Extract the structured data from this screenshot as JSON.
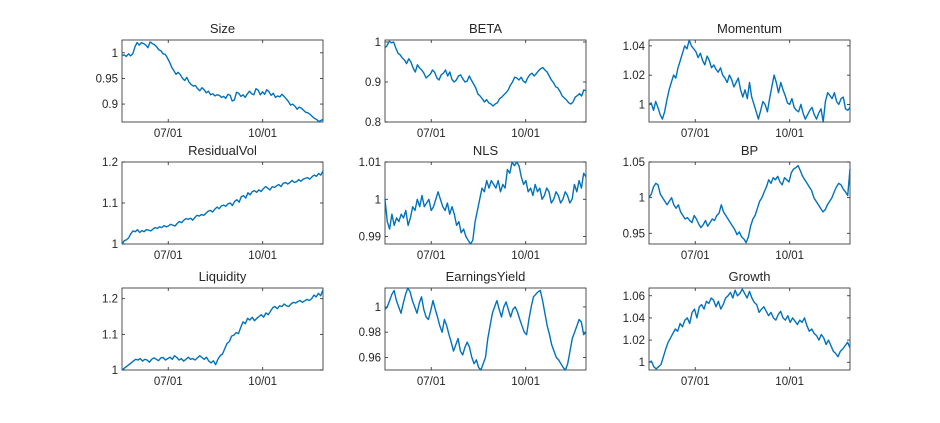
{
  "chart_data": [
    {
      "type": "line",
      "title": "Size",
      "xlabel": "",
      "ylabel": "",
      "xticks": [
        "07/01",
        "10/01"
      ],
      "yticks": [
        "0.9",
        "0.95",
        "1"
      ],
      "ylim": [
        0.865,
        1.025
      ],
      "grid": false,
      "color": "#0072BD",
      "series": [
        {
          "values": [
            0.995,
            0.996,
            0.993,
            0.998,
            0.994,
            0.998,
            1.012,
            1.02,
            1.015,
            1.02,
            1.018,
            1.015,
            1.01,
            1.021,
            1.018,
            1.016,
            1.012,
            1.006,
            1.004,
            0.998,
            0.997,
            0.99,
            0.982,
            0.972,
            0.965,
            0.958,
            0.962,
            0.957,
            0.95,
            0.946,
            0.952,
            0.943,
            0.938,
            0.935,
            0.936,
            0.93,
            0.926,
            0.932,
            0.928,
            0.922,
            0.925,
            0.918,
            0.92,
            0.916,
            0.918,
            0.917,
            0.913,
            0.915,
            0.911,
            0.919,
            0.917,
            0.906,
            0.908,
            0.923,
            0.921,
            0.915,
            0.918,
            0.913,
            0.92,
            0.925,
            0.92,
            0.918,
            0.93,
            0.927,
            0.918,
            0.924,
            0.919,
            0.928,
            0.924,
            0.917,
            0.921,
            0.913,
            0.916,
            0.914,
            0.919,
            0.915,
            0.91,
            0.905,
            0.898,
            0.9,
            0.896,
            0.89,
            0.894,
            0.892,
            0.888,
            0.884,
            0.883,
            0.88,
            0.876,
            0.872,
            0.87,
            0.866,
            0.868,
            0.87
          ]
        }
      ]
    },
    {
      "type": "line",
      "title": "BETA",
      "xlabel": "",
      "ylabel": "",
      "xticks": [
        "07/01",
        "10/01"
      ],
      "yticks": [
        "0.8",
        "0.9",
        "1"
      ],
      "ylim": [
        0.8,
        1.005
      ],
      "grid": false,
      "color": "#0072BD",
      "series": [
        {
          "values": [
            0.985,
            0.992,
            1.002,
            0.998,
            1.0,
            0.985,
            0.972,
            0.968,
            0.96,
            0.955,
            0.946,
            0.958,
            0.95,
            0.935,
            0.925,
            0.943,
            0.935,
            0.93,
            0.922,
            0.91,
            0.915,
            0.92,
            0.93,
            0.924,
            0.91,
            0.905,
            0.918,
            0.922,
            0.93,
            0.915,
            0.925,
            0.906,
            0.9,
            0.905,
            0.915,
            0.918,
            0.908,
            0.9,
            0.902,
            0.915,
            0.904,
            0.895,
            0.885,
            0.87,
            0.865,
            0.858,
            0.85,
            0.856,
            0.848,
            0.845,
            0.84,
            0.845,
            0.848,
            0.858,
            0.862,
            0.868,
            0.873,
            0.88,
            0.892,
            0.9,
            0.912,
            0.91,
            0.905,
            0.912,
            0.902,
            0.898,
            0.91,
            0.918,
            0.922,
            0.915,
            0.921,
            0.928,
            0.933,
            0.936,
            0.93,
            0.925,
            0.915,
            0.905,
            0.898,
            0.888,
            0.885,
            0.876,
            0.865,
            0.86,
            0.855,
            0.848,
            0.845,
            0.85,
            0.862,
            0.866,
            0.871,
            0.865,
            0.88,
            0.878
          ]
        }
      ]
    },
    {
      "type": "line",
      "title": "Momentum",
      "xlabel": "",
      "ylabel": "",
      "xticks": [
        "07/01",
        "10/01"
      ],
      "yticks": [
        "1",
        "1.02",
        "1.04"
      ],
      "ylim": [
        0.988,
        1.044
      ],
      "grid": false,
      "color": "#0072BD",
      "series": [
        {
          "values": [
            1.0,
            1.001,
            0.996,
            1.002,
            0.998,
            0.993,
            0.99,
            0.995,
            1.003,
            1.01,
            1.015,
            1.02,
            1.018,
            1.025,
            1.03,
            1.035,
            1.04,
            1.038,
            1.044,
            1.04,
            1.038,
            1.036,
            1.032,
            1.035,
            1.03,
            1.027,
            1.033,
            1.03,
            1.025,
            1.027,
            1.024,
            1.022,
            1.025,
            1.02,
            1.018,
            1.015,
            1.02,
            1.017,
            1.012,
            1.015,
            1.018,
            1.01,
            1.005,
            1.01,
            1.004,
            1.015,
            1.005,
            1.0,
            0.995,
            0.99,
            0.996,
            1.002,
            1.0,
            0.995,
            1.004,
            1.012,
            1.02,
            1.015,
            1.008,
            1.015,
            1.01,
            1.006,
            1.001,
            1.0,
            1.004,
            0.998,
            0.996,
            0.995,
            1.0,
            0.994,
            0.99,
            0.993,
            0.996,
            0.998,
            0.993,
            0.99,
            0.994,
            0.997,
            0.988,
            1.002,
            1.008,
            1.006,
            1.004,
            1.008,
            1.002,
            1.0,
            1.004,
            1.005,
            0.997,
            0.996,
            0.998
          ]
        }
      ]
    },
    {
      "type": "line",
      "title": "ResidualVol",
      "xlabel": "",
      "ylabel": "",
      "xticks": [
        "07/01",
        "10/01"
      ],
      "yticks": [
        "1",
        "1.1",
        "1.2"
      ],
      "ylim": [
        1.0,
        1.2
      ],
      "grid": false,
      "color": "#0072BD",
      "series": [
        {
          "values": [
            1.0,
            1.008,
            1.01,
            1.015,
            1.025,
            1.032,
            1.03,
            1.035,
            1.028,
            1.033,
            1.03,
            1.035,
            1.034,
            1.032,
            1.036,
            1.04,
            1.038,
            1.042,
            1.04,
            1.045,
            1.042,
            1.044,
            1.048,
            1.046,
            1.044,
            1.05,
            1.055,
            1.052,
            1.058,
            1.062,
            1.06,
            1.063,
            1.058,
            1.065,
            1.07,
            1.068,
            1.072,
            1.07,
            1.075,
            1.08,
            1.082,
            1.078,
            1.085,
            1.09,
            1.086,
            1.093,
            1.095,
            1.092,
            1.098,
            1.1,
            1.094,
            1.104,
            1.108,
            1.102,
            1.115,
            1.118,
            1.112,
            1.125,
            1.12,
            1.128,
            1.13,
            1.126,
            1.132,
            1.128,
            1.135,
            1.14,
            1.136,
            1.132,
            1.14,
            1.138,
            1.142,
            1.145,
            1.14,
            1.148,
            1.15,
            1.146,
            1.15,
            1.155,
            1.15,
            1.152,
            1.157,
            1.153,
            1.158,
            1.16,
            1.162,
            1.158,
            1.164,
            1.168,
            1.165,
            1.172,
            1.168,
            1.178
          ]
        }
      ]
    },
    {
      "type": "line",
      "title": "NLS",
      "xlabel": "",
      "ylabel": "",
      "xticks": [
        "07/01",
        "10/01"
      ],
      "yticks": [
        "0.99",
        "1",
        "1.01"
      ],
      "ylim": [
        0.988,
        1.01
      ],
      "grid": false,
      "color": "#0072BD",
      "series": [
        {
          "values": [
            1.0,
            0.994,
            0.992,
            0.996,
            0.993,
            0.995,
            0.994,
            0.996,
            0.995,
            0.997,
            0.993,
            0.995,
            0.998,
            0.997,
            1.0,
            0.998,
            1.001,
            0.998,
            0.999,
            1.0,
            0.997,
            0.998,
            1.0,
            1.002,
            1.0,
            0.998,
            0.997,
            0.999,
            0.996,
            0.998,
            0.996,
            0.993,
            0.994,
            0.991,
            0.992,
            0.99,
            0.989,
            0.988,
            0.989,
            0.994,
            0.997,
            1.0,
            1.003,
            1.002,
            1.005,
            1.003,
            1.005,
            1.004,
            1.003,
            1.005,
            1.002,
            1.004,
            1.003,
            1.008,
            1.007,
            1.01,
            1.009,
            1.01,
            1.009,
            1.006,
            1.004,
            1.005,
            1.002,
            1.003,
            1.001,
            1.004,
            1.002,
            1.003,
            1.0,
            1.001,
            1.003,
            1.002,
            0.999,
            1.0,
            1.002,
            1.001,
            0.999,
            1.0,
            1.002,
            1.001,
            0.999,
            1.0,
            1.004,
            1.002,
            1.005,
            1.003,
            1.007,
            1.006
          ]
        }
      ]
    },
    {
      "type": "line",
      "title": "BP",
      "xlabel": "",
      "ylabel": "",
      "xticks": [
        "07/01",
        "10/01"
      ],
      "yticks": [
        "0.95",
        "1",
        "1.05"
      ],
      "ylim": [
        0.935,
        1.05
      ],
      "grid": false,
      "color": "#0072BD",
      "series": [
        {
          "values": [
            1.0,
            1.005,
            1.015,
            1.02,
            1.018,
            1.005,
            1.0,
            0.995,
            0.99,
            0.995,
            1.0,
            0.99,
            0.985,
            0.99,
            0.98,
            0.975,
            0.97,
            0.972,
            0.968,
            0.965,
            0.975,
            0.97,
            0.963,
            0.958,
            0.962,
            0.968,
            0.96,
            0.965,
            0.97,
            0.968,
            0.975,
            0.978,
            0.99,
            0.98,
            0.975,
            0.97,
            0.965,
            0.96,
            0.955,
            0.948,
            0.952,
            0.945,
            0.942,
            0.937,
            0.945,
            0.96,
            0.97,
            0.975,
            0.985,
            0.995,
            1.0,
            1.008,
            1.015,
            1.025,
            1.02,
            1.028,
            1.025,
            1.03,
            1.022,
            1.018,
            1.028,
            1.025,
            1.022,
            1.035,
            1.04,
            1.042,
            1.045,
            1.038,
            1.03,
            1.025,
            1.02,
            1.015,
            1.01,
            1.0,
            0.995,
            0.99,
            0.985,
            0.98,
            0.983,
            0.99,
            0.995,
            1.0,
            1.008,
            1.015,
            1.02,
            1.018,
            1.012,
            1.008,
            1.003,
            1.04
          ]
        }
      ]
    },
    {
      "type": "line",
      "title": "Liquidity",
      "xlabel": "",
      "ylabel": "",
      "xticks": [
        "07/01",
        "10/01"
      ],
      "yticks": [
        "1",
        "1.1",
        "1.2"
      ],
      "ylim": [
        1.0,
        1.23
      ],
      "grid": false,
      "color": "#0072BD",
      "series": [
        {
          "values": [
            1.0,
            1.005,
            1.01,
            1.015,
            1.02,
            1.025,
            1.03,
            1.028,
            1.032,
            1.025,
            1.03,
            1.028,
            1.022,
            1.03,
            1.034,
            1.03,
            1.026,
            1.034,
            1.035,
            1.028,
            1.032,
            1.036,
            1.03,
            1.04,
            1.035,
            1.028,
            1.032,
            1.025,
            1.03,
            1.036,
            1.03,
            1.032,
            1.028,
            1.034,
            1.04,
            1.035,
            1.03,
            1.036,
            1.025,
            1.02,
            1.026,
            1.015,
            1.03,
            1.04,
            1.045,
            1.06,
            1.075,
            1.08,
            1.095,
            1.098,
            1.105,
            1.102,
            1.12,
            1.135,
            1.13,
            1.145,
            1.14,
            1.148,
            1.138,
            1.145,
            1.15,
            1.155,
            1.148,
            1.16,
            1.155,
            1.165,
            1.175,
            1.178,
            1.172,
            1.18,
            1.178,
            1.185,
            1.18,
            1.178,
            1.185,
            1.19,
            1.188,
            1.192,
            1.195,
            1.19,
            1.194,
            1.198,
            1.195,
            1.2,
            1.21,
            1.205,
            1.215,
            1.208,
            1.225
          ]
        }
      ]
    },
    {
      "type": "line",
      "title": "EarningsYield",
      "xlabel": "",
      "ylabel": "",
      "xticks": [
        "07/01",
        "10/01"
      ],
      "yticks": [
        "0.96",
        "0.98",
        "1"
      ],
      "ylim": [
        0.95,
        1.015
      ],
      "grid": false,
      "color": "#0072BD",
      "series": [
        {
          "values": [
            0.998,
            1.0,
            1.005,
            1.01,
            1.013,
            1.005,
            1.0,
            0.995,
            1.003,
            1.01,
            1.015,
            1.012,
            1.005,
            1.0,
            0.995,
            1.003,
            1.008,
            0.998,
            0.992,
            0.99,
            0.997,
            1.005,
            0.998,
            0.992,
            0.985,
            0.98,
            0.99,
            0.985,
            0.978,
            0.972,
            0.965,
            0.97,
            0.975,
            0.965,
            0.962,
            0.968,
            0.972,
            0.968,
            0.96,
            0.955,
            0.958,
            0.952,
            0.95,
            0.955,
            0.96,
            0.975,
            0.985,
            0.995,
            1.0,
            1.005,
            0.998,
            0.992,
            1.0,
            1.004,
            0.998,
            0.992,
            0.998,
            1.0,
            0.996,
            0.99,
            0.985,
            0.98,
            0.978,
            0.99,
            1.0,
            1.008,
            1.01,
            1.012,
            1.013,
            1.005,
            0.995,
            0.985,
            0.978,
            0.97,
            0.965,
            0.96,
            0.958,
            0.955,
            0.952,
            0.95,
            0.955,
            0.965,
            0.975,
            0.98,
            0.985,
            0.99,
            0.988,
            0.978,
            0.98
          ]
        }
      ]
    },
    {
      "type": "line",
      "title": "Growth",
      "xlabel": "",
      "ylabel": "",
      "xticks": [
        "07/01",
        "10/01"
      ],
      "yticks": [
        "1",
        "1.02",
        "1.04",
        "1.06"
      ],
      "ylim": [
        0.993,
        1.067
      ],
      "grid": false,
      "color": "#0072BD",
      "series": [
        {
          "values": [
            1.0,
            1.001,
            0.996,
            0.994,
            0.996,
            0.998,
            1.005,
            1.012,
            1.018,
            1.022,
            1.026,
            1.03,
            1.028,
            1.035,
            1.032,
            1.038,
            1.04,
            1.035,
            1.045,
            1.048,
            1.04,
            1.05,
            1.052,
            1.048,
            1.055,
            1.053,
            1.058,
            1.056,
            1.05,
            1.055,
            1.048,
            1.052,
            1.058,
            1.06,
            1.063,
            1.058,
            1.065,
            1.06,
            1.062,
            1.066,
            1.062,
            1.058,
            1.064,
            1.058,
            1.054,
            1.052,
            1.045,
            1.048,
            1.05,
            1.046,
            1.042,
            1.045,
            1.04,
            1.038,
            1.043,
            1.046,
            1.04,
            1.038,
            1.042,
            1.036,
            1.04,
            1.037,
            1.034,
            1.038,
            1.036,
            1.04,
            1.033,
            1.028,
            1.03,
            1.026,
            1.024,
            1.02,
            1.025,
            1.022,
            1.016,
            1.02,
            1.015,
            1.01,
            1.008,
            1.005,
            1.01,
            1.012,
            1.015,
            1.018,
            1.013
          ]
        }
      ]
    }
  ]
}
